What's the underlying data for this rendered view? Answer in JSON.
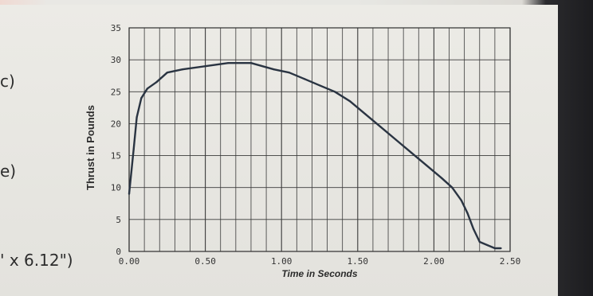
{
  "page": {
    "left_labels": [
      "c)",
      "e)",
      "' x 6.12\")"
    ]
  },
  "chart_data": {
    "type": "line",
    "title": "",
    "xlabel": "Time in Seconds",
    "ylabel": "Thrust in Pounds",
    "xlim": [
      0,
      2.5
    ],
    "ylim": [
      0,
      35
    ],
    "grid": true,
    "x_ticks": [
      "0.00",
      "0.50",
      "1.00",
      "1.50",
      "2.00",
      "2.50"
    ],
    "y_ticks": [
      "0",
      "5",
      "10",
      "15",
      "20",
      "25",
      "30",
      "35"
    ],
    "series": [
      {
        "name": "",
        "color": "#2a3442",
        "x": [
          0.0,
          0.03,
          0.05,
          0.08,
          0.12,
          0.18,
          0.25,
          0.35,
          0.5,
          0.65,
          0.8,
          0.95,
          1.05,
          1.15,
          1.25,
          1.35,
          1.45,
          1.55,
          1.65,
          1.75,
          1.85,
          1.95,
          2.05,
          2.12,
          2.18,
          2.22,
          2.26,
          2.3,
          2.35,
          2.4,
          2.44
        ],
        "y": [
          9,
          16,
          21,
          24,
          25.5,
          26.5,
          28,
          28.5,
          29,
          29.5,
          29.5,
          28.5,
          28,
          27,
          26,
          25,
          23.5,
          21.5,
          19.5,
          17.5,
          15.5,
          13.5,
          11.5,
          10,
          8,
          6,
          3.5,
          1.5,
          1,
          0.5,
          0.5
        ]
      }
    ]
  }
}
